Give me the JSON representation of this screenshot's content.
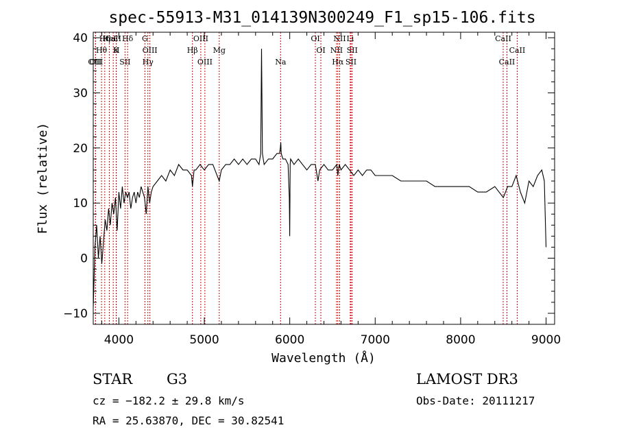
{
  "chart_data": {
    "type": "line",
    "title": "spec-55913-M31_014139N300249_F1_sp15-106.fits",
    "xlabel": "Wavelength (Å)",
    "ylabel": "Flux (relative)",
    "xlim": [
      3700,
      9100
    ],
    "ylim": [
      -12,
      41
    ],
    "x_ticks": [
      4000,
      5000,
      6000,
      7000,
      8000,
      9000
    ],
    "y_ticks": [
      -10,
      0,
      10,
      20,
      30,
      40
    ],
    "grid": false,
    "series": [
      {
        "color": "#000000",
        "x": [
          3700,
          3720,
          3740,
          3760,
          3780,
          3800,
          3820,
          3840,
          3860,
          3880,
          3900,
          3920,
          3940,
          3960,
          3980,
          4000,
          4020,
          4040,
          4060,
          4080,
          4100,
          4120,
          4140,
          4160,
          4180,
          4200,
          4220,
          4240,
          4260,
          4280,
          4300,
          4320,
          4340,
          4360,
          4380,
          4400,
          4450,
          4500,
          4550,
          4600,
          4650,
          4700,
          4750,
          4800,
          4850,
          4861,
          4880,
          4900,
          4950,
          5000,
          5050,
          5100,
          5150,
          5175,
          5200,
          5250,
          5300,
          5350,
          5400,
          5450,
          5500,
          5550,
          5600,
          5640,
          5660,
          5670,
          5680,
          5690,
          5700,
          5750,
          5800,
          5850,
          5880,
          5890,
          5895,
          5900,
          5920,
          5950,
          5980,
          5995,
          6000,
          6005,
          6010,
          6050,
          6100,
          6150,
          6200,
          6250,
          6300,
          6330,
          6350,
          6400,
          6450,
          6500,
          6550,
          6563,
          6580,
          6600,
          6650,
          6700,
          6750,
          6800,
          6850,
          6900,
          6950,
          7000,
          7100,
          7200,
          7300,
          7400,
          7500,
          7600,
          7700,
          7800,
          7900,
          8000,
          8100,
          8200,
          8300,
          8400,
          8500,
          8550,
          8600,
          8650,
          8700,
          8750,
          8800,
          8850,
          8900,
          8950,
          8980,
          9000
        ],
        "values": [
          -9,
          2,
          6,
          0,
          4,
          -1,
          3,
          7,
          5,
          9,
          6,
          10,
          8,
          11,
          5,
          12,
          9,
          13,
          10,
          12,
          11,
          12,
          9,
          11,
          12,
          10,
          12,
          11,
          13,
          12,
          11,
          8,
          13,
          10,
          12,
          13,
          14,
          15,
          14,
          16,
          15,
          17,
          16,
          16,
          15,
          13,
          16,
          16,
          17,
          16,
          17,
          17,
          15,
          14,
          16,
          17,
          17,
          18,
          17,
          18,
          17,
          18,
          18,
          17,
          19,
          38,
          19,
          18,
          17,
          18,
          18,
          19,
          19,
          20,
          21,
          19,
          18,
          18,
          17,
          11,
          4,
          17,
          18,
          17,
          18,
          17,
          16,
          17,
          17,
          14,
          16,
          17,
          16,
          16,
          17,
          15,
          17,
          16,
          17,
          16,
          15,
          16,
          15,
          16,
          16,
          15,
          15,
          15,
          14,
          14,
          14,
          14,
          13,
          13,
          13,
          13,
          13,
          12,
          12,
          13,
          11,
          13,
          13,
          15,
          12,
          10,
          14,
          13,
          15,
          16,
          14,
          2
        ]
      }
    ],
    "line_markers": [
      {
        "label": "CaII",
        "x": 3934
      },
      {
        "label": "Hθ",
        "x": 3797
      },
      {
        "label": "OII",
        "x": 3727
      },
      {
        "label": "HeI",
        "x": 3889
      },
      {
        "label": "K",
        "x": 3969
      },
      {
        "label": "OIII",
        "x": 3727
      },
      {
        "label": "Hη",
        "x": 3835
      },
      {
        "label": "H",
        "x": 3970
      },
      {
        "label": "SII",
        "x": 4072
      },
      {
        "label": "Hδ",
        "x": 4102
      },
      {
        "label": "OIII",
        "x": 4363
      },
      {
        "label": "Hγ",
        "x": 4340
      },
      {
        "label": "G",
        "x": 4305
      },
      {
        "label": "Hβ",
        "x": 4861
      },
      {
        "label": "OIII",
        "x": 5007
      },
      {
        "label": "OIII",
        "x": 4959
      },
      {
        "label": "Mg",
        "x": 5175
      },
      {
        "label": "Na",
        "x": 5893
      },
      {
        "label": "OI",
        "x": 6300
      },
      {
        "label": "OI",
        "x": 6364
      },
      {
        "label": "Hα",
        "x": 6563
      },
      {
        "label": "NII",
        "x": 6584
      },
      {
        "label": "NII",
        "x": 6548
      },
      {
        "label": "SII",
        "x": 6717
      },
      {
        "label": "Li",
        "x": 6708
      },
      {
        "label": "SII",
        "x": 6731
      },
      {
        "label": "CaII",
        "x": 8542
      },
      {
        "label": "CaII",
        "x": 8498
      },
      {
        "label": "CaII",
        "x": 8662
      }
    ],
    "line_marker_color": "#cc0000"
  },
  "info": {
    "class": "STAR",
    "subclass": "G3",
    "survey": "LAMOST DR3",
    "cz": "cz = −182.2 ± 29.8 km/s",
    "obs_date": "Obs-Date: 20111217",
    "coords": "RA =  25.63870, DEC =  30.82541"
  }
}
